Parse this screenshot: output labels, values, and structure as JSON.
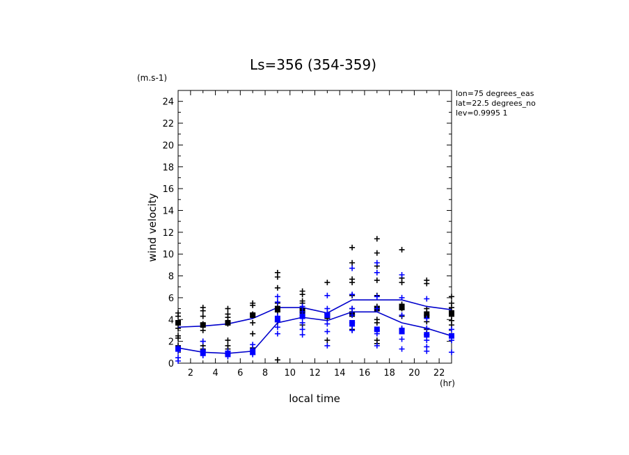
{
  "chart_data": {
    "type": "scatter",
    "title": "Ls=356 (354-359)",
    "xlabel": "local time",
    "ylabel": "wind velocity",
    "xunit": "(hr)",
    "yunit": "(m.s-1)",
    "xlim": [
      1,
      23
    ],
    "ylim": [
      0,
      25
    ],
    "xticks": [
      2,
      4,
      6,
      8,
      10,
      12,
      14,
      16,
      18,
      20,
      22
    ],
    "yticks": [
      0,
      2,
      4,
      6,
      8,
      10,
      12,
      14,
      16,
      18,
      20,
      22,
      24
    ],
    "annotations": [
      "lon=75 degrees_eas",
      "lat=22.5 degrees_no",
      "lev=0.9995 1"
    ],
    "grid": false,
    "series": [
      {
        "color": "#000000",
        "x": [
          1,
          3,
          5,
          7,
          9,
          11,
          13,
          15,
          17,
          19,
          21,
          23
        ],
        "line": [
          3.3,
          3.4,
          3.6,
          4.1,
          5.1,
          5.1,
          4.6,
          5.8,
          5.8,
          5.8,
          5.2,
          4.9
        ],
        "mean": [
          3.7,
          3.5,
          3.7,
          4.4,
          5.0,
          4.8,
          4.4,
          4.5,
          5.0,
          5.1,
          4.4,
          4.6
        ],
        "points": [
          [
            4.6,
            4.3,
            3.7,
            3.2,
            2.5,
            2.3,
            1.6
          ],
          [
            5.1,
            4.8,
            4.3,
            3.6,
            3.0,
            2.0,
            1.6,
            1.3
          ],
          [
            5.0,
            4.5,
            4.2,
            3.8,
            3.6,
            2.1,
            1.6,
            1.3
          ],
          [
            5.5,
            5.3,
            4.5,
            4.3,
            3.7,
            2.7,
            1.4
          ],
          [
            8.3,
            7.9,
            6.9,
            5.5,
            4.7,
            3.8,
            0.3
          ],
          [
            6.6,
            6.3,
            5.7,
            5.5,
            5.0,
            4.7,
            4.4,
            3.5
          ],
          [
            7.4,
            4.6,
            4.1,
            2.1
          ],
          [
            10.6,
            9.2,
            7.7,
            7.4,
            6.2,
            5.0,
            4.5,
            3.7,
            3.1
          ],
          [
            11.4,
            10.1,
            8.9,
            7.6,
            6.2,
            5.2,
            4.0,
            3.7,
            2.1,
            1.8
          ],
          [
            10.4,
            7.8,
            7.4,
            5.4,
            5.0,
            4.3,
            3.1
          ],
          [
            7.6,
            7.3,
            5.0,
            4.7,
            4.4,
            3.8,
            3.1,
            2.6
          ],
          [
            6.1,
            5.5,
            5.1,
            4.6,
            4.3,
            3.9,
            3.5
          ]
        ]
      },
      {
        "color": "#0000ff",
        "x": [
          1,
          3,
          5,
          7,
          9,
          11,
          13,
          15,
          17,
          19,
          21,
          23
        ],
        "line": [
          1.4,
          1.0,
          0.9,
          1.1,
          3.7,
          4.2,
          3.9,
          4.7,
          4.7,
          3.7,
          3.2,
          2.5
        ],
        "mean": [
          1.3,
          1.0,
          0.9,
          1.0,
          4.0,
          4.3,
          4.4,
          3.7,
          3.1,
          2.9,
          2.6,
          2.5
        ],
        "points": [
          [
            1.4,
            1.1,
            0.5,
            0.2
          ],
          [
            2.0,
            1.2,
            0.7
          ],
          [
            1.1,
            0.8,
            0.6
          ],
          [
            1.7,
            1.3,
            0.8
          ],
          [
            6.1,
            5.6,
            4.3,
            3.9,
            3.3,
            2.7
          ],
          [
            5.2,
            4.7,
            4.2,
            3.7,
            3.1,
            2.6
          ],
          [
            6.2,
            5.0,
            4.5,
            3.6,
            2.9,
            1.6
          ],
          [
            8.7,
            6.3,
            5.0,
            4.4,
            3.4,
            3.0
          ],
          [
            9.2,
            8.3,
            6.1,
            5.0,
            3.0,
            2.7,
            1.6
          ],
          [
            8.1,
            6.0,
            4.4,
            3.2,
            2.2,
            1.3
          ],
          [
            5.9,
            4.1,
            3.2,
            2.6,
            2.1,
            1.5,
            1.1
          ],
          [
            3.1,
            2.5,
            2.1,
            1.0
          ]
        ]
      }
    ]
  }
}
